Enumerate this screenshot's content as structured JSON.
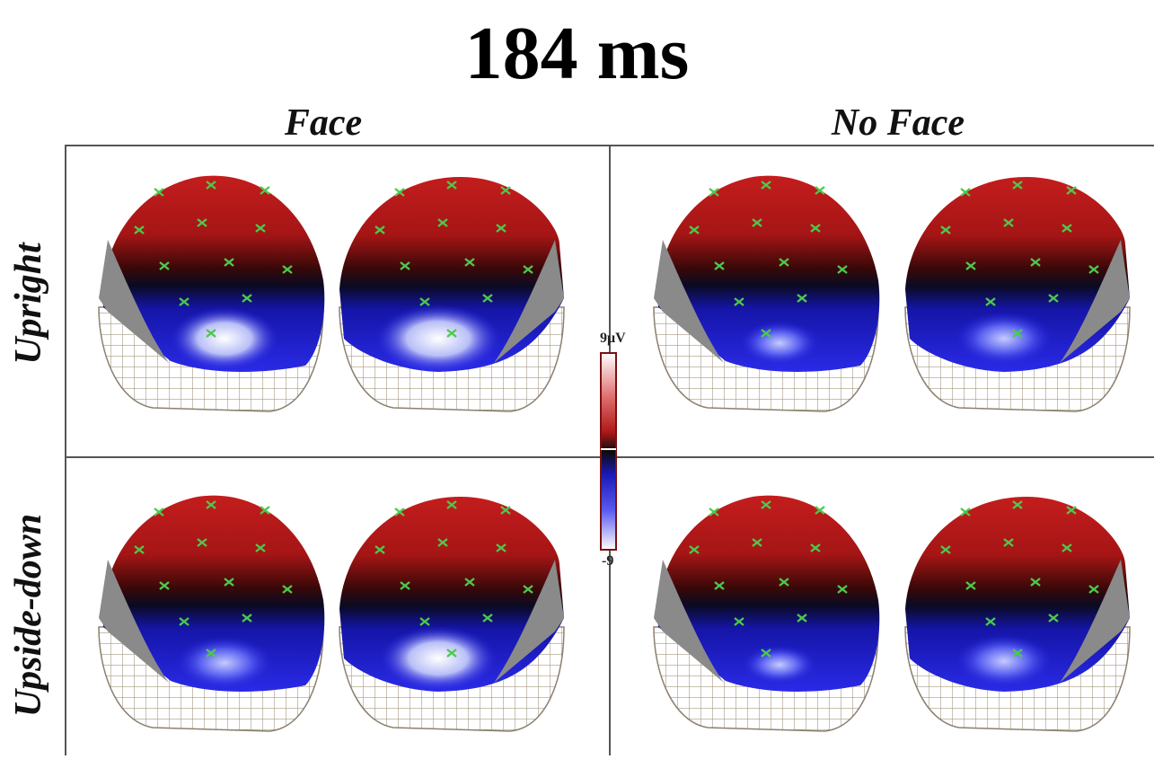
{
  "title": "184 ms",
  "columns": [
    "Face",
    "No Face"
  ],
  "rows": [
    "Upright",
    "Upside-down"
  ],
  "colorbar": {
    "max_label": "9μV",
    "min_label": "-9",
    "high_color": "#ffffff",
    "mid_high_color": "#c41a1a",
    "zero_color": "#0b0b0b",
    "mid_low_color": "#1a1ad8",
    "low_color": "#ffffff"
  },
  "colors": {
    "scalp_positive": "#b21818",
    "scalp_negative": "#1717c9",
    "negative_peak": "#eef0ff",
    "mask_gray": "#8a8a8a",
    "mesh_line": "#a89a84",
    "electrode_marker": "#4cc94c"
  }
}
